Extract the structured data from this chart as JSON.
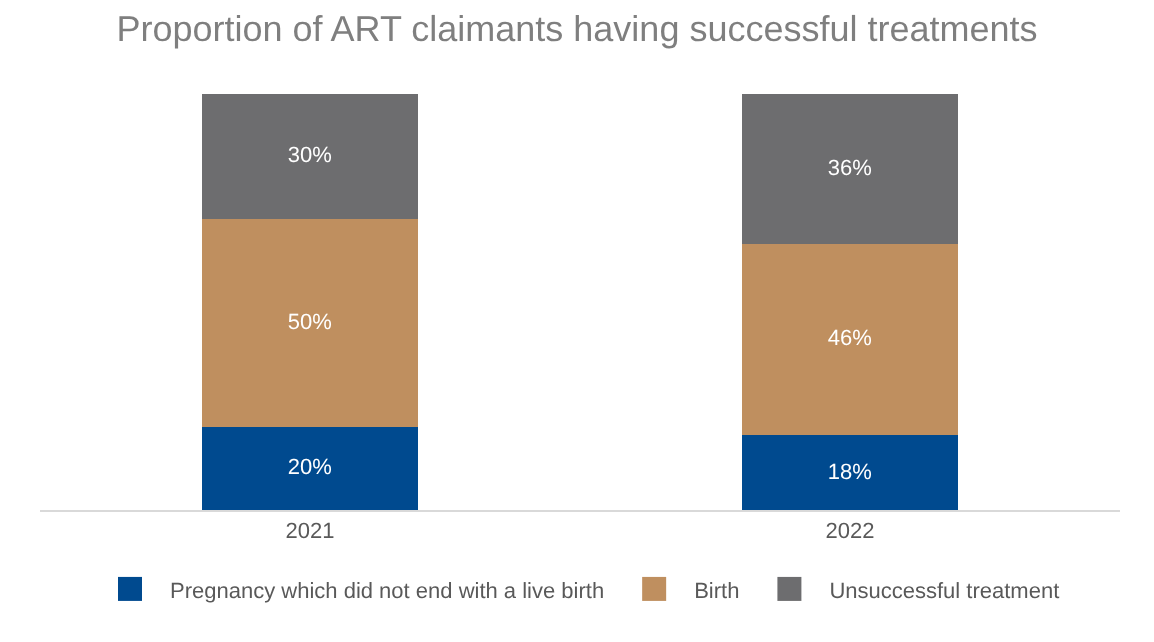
{
  "chart_data": {
    "type": "bar",
    "title": "Proportion of ART claimants having successful treatments",
    "categories": [
      "2021",
      "2022"
    ],
    "stacked": true,
    "ylim": [
      0,
      100
    ],
    "tick_labels": "x",
    "grid": false,
    "legend": "bottom",
    "series": [
      {
        "name": "Pregnancy which did not end with a live birth",
        "color": "#004a8f",
        "values": [
          20,
          18
        ],
        "value_labels": [
          "20%",
          "18%"
        ]
      },
      {
        "name": "Birth",
        "color": "#bf8f5f",
        "values": [
          50,
          46
        ],
        "value_labels": [
          "50%",
          "46%"
        ]
      },
      {
        "name": "Unsuccessful treatment",
        "color": "#6d6d6f",
        "values": [
          30,
          36
        ],
        "value_labels": [
          "30%",
          "36%"
        ]
      }
    ]
  }
}
